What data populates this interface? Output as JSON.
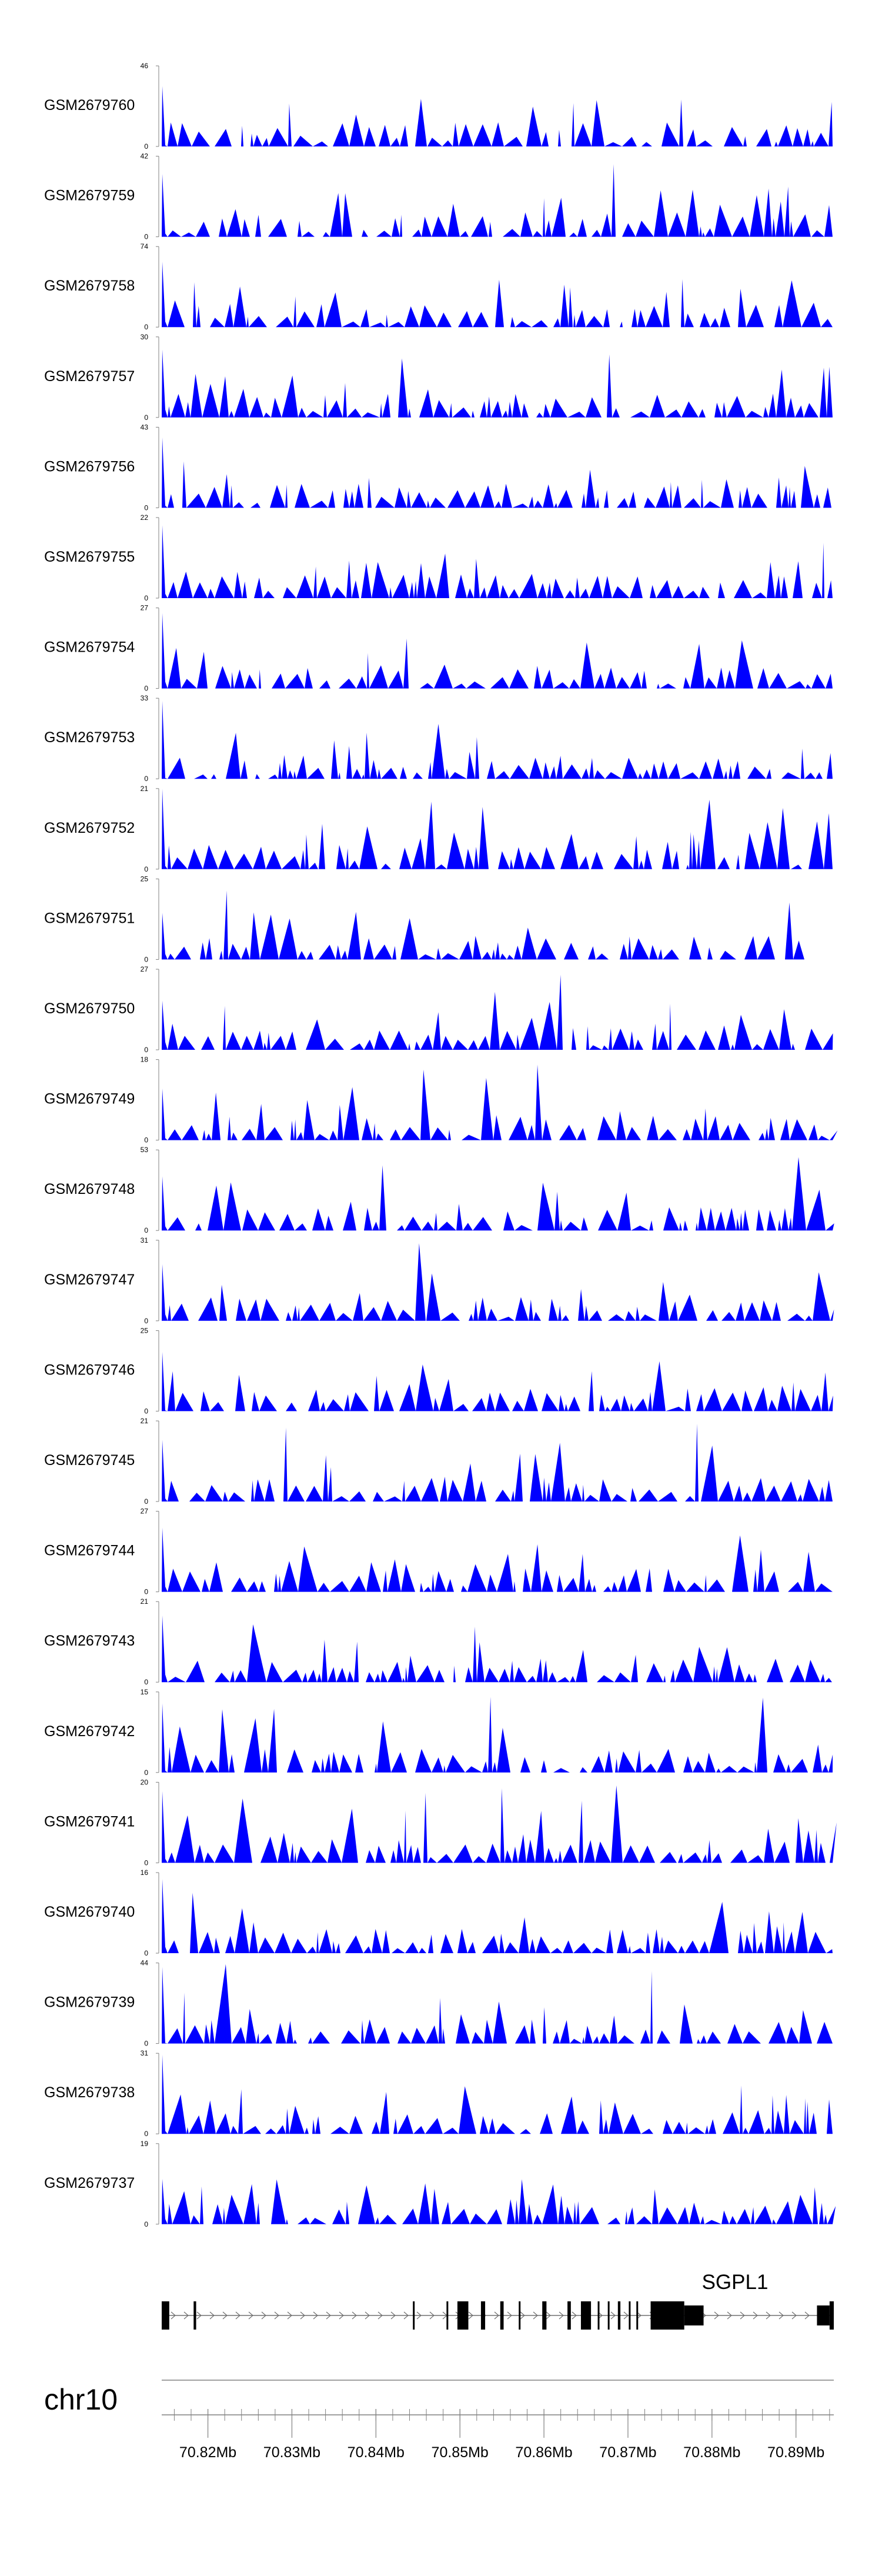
{
  "chart_data": {
    "type": "area",
    "chromosome": "chr10",
    "x_range_mb": [
      70.8145,
      70.8945
    ],
    "x_ticks": [
      "70.82Mb",
      "70.83Mb",
      "70.84Mb",
      "70.85Mb",
      "70.86Mb",
      "70.87Mb",
      "70.88Mb",
      "70.89Mb"
    ],
    "fill_color": "#0000FF",
    "tracks": [
      {
        "name": "GSM2679760",
        "ymax": 46,
        "ymin_label": "0",
        "ymax_label": "46"
      },
      {
        "name": "GSM2679759",
        "ymax": 42,
        "ymin_label": "0",
        "ymax_label": "42"
      },
      {
        "name": "GSM2679758",
        "ymax": 74,
        "ymin_label": "0",
        "ymax_label": "74"
      },
      {
        "name": "GSM2679757",
        "ymax": 30,
        "ymin_label": "0",
        "ymax_label": "30"
      },
      {
        "name": "GSM2679756",
        "ymax": 43,
        "ymin_label": "0",
        "ymax_label": "43"
      },
      {
        "name": "GSM2679755",
        "ymax": 22,
        "ymin_label": "0",
        "ymax_label": "22"
      },
      {
        "name": "GSM2679754",
        "ymax": 27,
        "ymin_label": "0",
        "ymax_label": "27"
      },
      {
        "name": "GSM2679753",
        "ymax": 33,
        "ymin_label": "0",
        "ymax_label": "33"
      },
      {
        "name": "GSM2679752",
        "ymax": 21,
        "ymin_label": "0",
        "ymax_label": "21"
      },
      {
        "name": "GSM2679751",
        "ymax": 25,
        "ymin_label": "0",
        "ymax_label": "25"
      },
      {
        "name": "GSM2679750",
        "ymax": 27,
        "ymin_label": "0",
        "ymax_label": "27"
      },
      {
        "name": "GSM2679749",
        "ymax": 18,
        "ymin_label": "0",
        "ymax_label": "18"
      },
      {
        "name": "GSM2679748",
        "ymax": 53,
        "ymin_label": "0",
        "ymax_label": "53"
      },
      {
        "name": "GSM2679747",
        "ymax": 31,
        "ymin_label": "0",
        "ymax_label": "31"
      },
      {
        "name": "GSM2679746",
        "ymax": 25,
        "ymin_label": "0",
        "ymax_label": "25"
      },
      {
        "name": "GSM2679745",
        "ymax": 21,
        "ymin_label": "0",
        "ymax_label": "21"
      },
      {
        "name": "GSM2679744",
        "ymax": 27,
        "ymin_label": "0",
        "ymax_label": "27"
      },
      {
        "name": "GSM2679743",
        "ymax": 21,
        "ymin_label": "0",
        "ymax_label": "21"
      },
      {
        "name": "GSM2679742",
        "ymax": 15,
        "ymin_label": "0",
        "ymax_label": "15"
      },
      {
        "name": "GSM2679741",
        "ymax": 20,
        "ymin_label": "0",
        "ymax_label": "20"
      },
      {
        "name": "GSM2679740",
        "ymax": 16,
        "ymin_label": "0",
        "ymax_label": "16"
      },
      {
        "name": "GSM2679739",
        "ymax": 44,
        "ymin_label": "0",
        "ymax_label": "44"
      },
      {
        "name": "GSM2679738",
        "ymax": 31,
        "ymin_label": "0",
        "ymax_label": "31"
      },
      {
        "name": "GSM2679737",
        "ymax": 19,
        "ymin_label": "0",
        "ymax_label": "19"
      }
    ],
    "gene": {
      "name": "SGPL1",
      "start_mb": 70.8145,
      "end_mb": 70.8945,
      "strand": "+",
      "exons_mb": [
        [
          70.8145,
          70.8154
        ],
        [
          70.8183,
          70.8186
        ],
        [
          70.8444,
          70.8446
        ],
        [
          70.8484,
          70.8485
        ],
        [
          70.8497,
          70.851
        ],
        [
          70.8525,
          70.853
        ],
        [
          70.8548,
          70.8552
        ],
        [
          70.857,
          70.8571
        ],
        [
          70.8598,
          70.8603
        ],
        [
          70.8628,
          70.8632
        ],
        [
          70.8644,
          70.8656
        ],
        [
          70.8664,
          70.8666
        ],
        [
          70.8676,
          70.8678
        ],
        [
          70.8688,
          70.8691
        ],
        [
          70.8701,
          70.8703
        ],
        [
          70.871,
          70.8712
        ],
        [
          70.8727,
          70.8767
        ],
        [
          70.894,
          70.8945
        ]
      ],
      "utr_mb": [
        [
          70.8767,
          70.879
        ],
        [
          70.8925,
          70.894
        ]
      ]
    }
  }
}
